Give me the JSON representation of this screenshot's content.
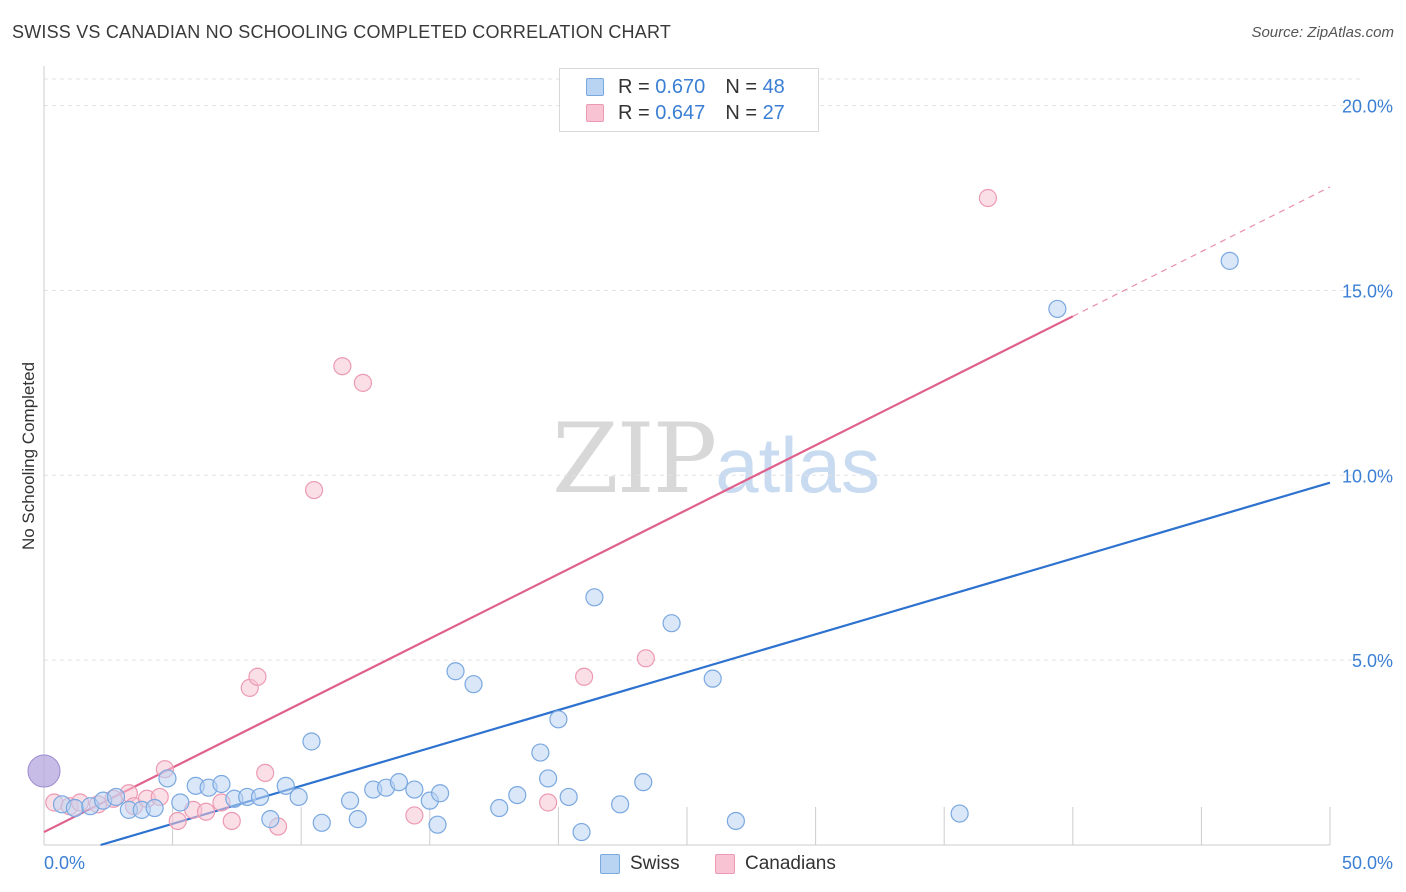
{
  "title": "SWISS VS CANADIAN NO SCHOOLING COMPLETED CORRELATION CHART",
  "source": "Source: ZipAtlas.com",
  "watermark": {
    "zip": "ZIP",
    "atlas": "atlas"
  },
  "legend": {
    "rows": [
      {
        "r_label": "R = ",
        "r_value": "0.670",
        "n_label": "N = ",
        "n_value": "48",
        "series": "Swiss"
      },
      {
        "r_label": "R = ",
        "r_value": "0.647",
        "n_label": "N = ",
        "n_value": "27",
        "series": "Canadians"
      }
    ]
  },
  "bottom_legend": {
    "swiss": "Swiss",
    "canadians": "Canadians"
  },
  "colors": {
    "swiss_fill": "#b9d3f3",
    "swiss_stroke": "#7aa8e0",
    "swiss_line": "#2e72cf",
    "canadians_fill": "#f8c4d4",
    "canadians_stroke": "#ec9ab3",
    "canadians_line": "#e0608c",
    "accent": "#3b7fd4"
  },
  "chart_data": {
    "type": "scatter",
    "title": "SWISS VS CANADIAN NO SCHOOLING COMPLETED CORRELATION CHART",
    "xlabel": "",
    "ylabel": "No Schooling Completed",
    "xlim": [
      0,
      50
    ],
    "ylim": [
      0,
      20.8
    ],
    "x_tick_labels": [
      "0.0%",
      "50.0%"
    ],
    "y_ticks": [
      5,
      10,
      15,
      20
    ],
    "y_tick_labels": [
      "5.0%",
      "10.0%",
      "15.0%",
      "20.0%"
    ],
    "grid": true,
    "series": [
      {
        "name": "Swiss",
        "points": [
          [
            0.7,
            1.1
          ],
          [
            1.2,
            1.0
          ],
          [
            1.8,
            1.05
          ],
          [
            2.3,
            1.2
          ],
          [
            2.8,
            1.3
          ],
          [
            3.3,
            0.95
          ],
          [
            3.8,
            0.95
          ],
          [
            4.3,
            1.0
          ],
          [
            4.8,
            1.8
          ],
          [
            5.3,
            1.15
          ],
          [
            5.9,
            1.6
          ],
          [
            6.4,
            1.55
          ],
          [
            6.9,
            1.65
          ],
          [
            7.4,
            1.25
          ],
          [
            7.9,
            1.3
          ],
          [
            8.4,
            1.3
          ],
          [
            8.8,
            0.7
          ],
          [
            9.4,
            1.6
          ],
          [
            9.9,
            1.3
          ],
          [
            10.4,
            2.8
          ],
          [
            10.8,
            0.6
          ],
          [
            11.9,
            1.2
          ],
          [
            12.2,
            0.7
          ],
          [
            12.8,
            1.5
          ],
          [
            13.3,
            1.55
          ],
          [
            13.8,
            1.7
          ],
          [
            14.4,
            1.5
          ],
          [
            15.0,
            1.2
          ],
          [
            15.3,
            0.55
          ],
          [
            15.4,
            1.4
          ],
          [
            16.0,
            4.7
          ],
          [
            16.7,
            4.35
          ],
          [
            17.7,
            1.0
          ],
          [
            18.4,
            1.35
          ],
          [
            19.3,
            2.5
          ],
          [
            19.6,
            1.8
          ],
          [
            20.0,
            3.4
          ],
          [
            20.4,
            1.3
          ],
          [
            20.9,
            0.35
          ],
          [
            21.4,
            6.7
          ],
          [
            22.4,
            1.1
          ],
          [
            23.3,
            1.7
          ],
          [
            24.4,
            6.0
          ],
          [
            26.0,
            4.5
          ],
          [
            26.9,
            0.65
          ],
          [
            35.6,
            0.85
          ],
          [
            39.4,
            14.5
          ],
          [
            46.1,
            15.8
          ]
        ],
        "trendline": {
          "x": [
            2.2,
            50.0
          ],
          "y": [
            0.0,
            9.8
          ]
        }
      },
      {
        "name": "Canadians",
        "points": [
          [
            0.4,
            1.15
          ],
          [
            1.0,
            1.05
          ],
          [
            1.4,
            1.15
          ],
          [
            2.1,
            1.1
          ],
          [
            2.7,
            1.25
          ],
          [
            3.3,
            1.4
          ],
          [
            3.5,
            1.05
          ],
          [
            4.0,
            1.25
          ],
          [
            4.5,
            1.3
          ],
          [
            4.7,
            2.05
          ],
          [
            5.2,
            0.65
          ],
          [
            5.8,
            0.95
          ],
          [
            6.3,
            0.9
          ],
          [
            6.9,
            1.15
          ],
          [
            7.3,
            0.65
          ],
          [
            8.0,
            4.25
          ],
          [
            8.3,
            4.55
          ],
          [
            8.6,
            1.95
          ],
          [
            9.1,
            0.5
          ],
          [
            10.5,
            9.6
          ],
          [
            11.6,
            12.95
          ],
          [
            12.4,
            12.5
          ],
          [
            14.4,
            0.8
          ],
          [
            19.6,
            1.15
          ],
          [
            21.0,
            4.55
          ],
          [
            23.4,
            5.05
          ],
          [
            36.7,
            17.5
          ]
        ],
        "trendline": {
          "x": [
            0.0,
            40.0
          ],
          "y": [
            0.35,
            14.3
          ]
        },
        "trendline_extension": {
          "x": [
            40.0,
            50.0
          ],
          "y": [
            14.3,
            17.8
          ]
        }
      }
    ],
    "big_point": {
      "x": 0.0,
      "y": 2.0,
      "color": "#b4a6dc"
    }
  }
}
